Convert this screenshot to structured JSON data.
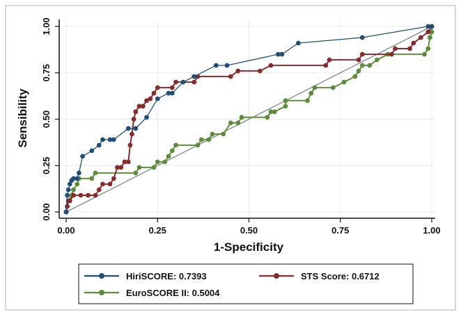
{
  "chart_data": {
    "type": "line",
    "title": "",
    "xlabel": "1-Specificity",
    "ylabel": "Sensibility",
    "xlim": [
      0,
      1
    ],
    "ylim": [
      0,
      1
    ],
    "x_ticks": [
      "0.00",
      "0.25",
      "0.50",
      "0.75",
      "1.00"
    ],
    "y_ticks": [
      "0.00",
      "0.25",
      "0.50",
      "0.75",
      "1.00"
    ],
    "grid": true,
    "legend_position": "bottom",
    "reference_line": true,
    "series": [
      {
        "name": "HiriSCORE: 0.7393",
        "color": "#1f4e79",
        "points": [
          [
            0,
            0
          ],
          [
            0.003,
            0.09
          ],
          [
            0.006,
            0.12
          ],
          [
            0.01,
            0.15
          ],
          [
            0.015,
            0.17
          ],
          [
            0.02,
            0.18
          ],
          [
            0.03,
            0.18
          ],
          [
            0.035,
            0.21
          ],
          [
            0.045,
            0.3
          ],
          [
            0.07,
            0.33
          ],
          [
            0.09,
            0.36
          ],
          [
            0.1,
            0.39
          ],
          [
            0.12,
            0.39
          ],
          [
            0.13,
            0.39
          ],
          [
            0.17,
            0.45
          ],
          [
            0.19,
            0.45
          ],
          [
            0.22,
            0.51
          ],
          [
            0.25,
            0.61
          ],
          [
            0.28,
            0.64
          ],
          [
            0.29,
            0.64
          ],
          [
            0.32,
            0.7
          ],
          [
            0.35,
            0.73
          ],
          [
            0.41,
            0.79
          ],
          [
            0.44,
            0.79
          ],
          [
            0.58,
            0.85
          ],
          [
            0.59,
            0.85
          ],
          [
            0.635,
            0.91
          ],
          [
            0.81,
            0.94
          ],
          [
            0.99,
            1.0
          ],
          [
            1.0,
            1.0
          ]
        ]
      },
      {
        "name": "STS Score: 0.6712",
        "color": "#8b2a2a",
        "points": [
          [
            0,
            0
          ],
          [
            0.003,
            0.03
          ],
          [
            0.006,
            0.06
          ],
          [
            0.01,
            0.06
          ],
          [
            0.02,
            0.09
          ],
          [
            0.04,
            0.09
          ],
          [
            0.06,
            0.09
          ],
          [
            0.08,
            0.09
          ],
          [
            0.09,
            0.12
          ],
          [
            0.1,
            0.15
          ],
          [
            0.12,
            0.15
          ],
          [
            0.13,
            0.18
          ],
          [
            0.14,
            0.24
          ],
          [
            0.15,
            0.24
          ],
          [
            0.16,
            0.27
          ],
          [
            0.17,
            0.27
          ],
          [
            0.175,
            0.36
          ],
          [
            0.18,
            0.42
          ],
          [
            0.185,
            0.5
          ],
          [
            0.19,
            0.54
          ],
          [
            0.2,
            0.57
          ],
          [
            0.21,
            0.57
          ],
          [
            0.22,
            0.6
          ],
          [
            0.23,
            0.61
          ],
          [
            0.24,
            0.64
          ],
          [
            0.25,
            0.67
          ],
          [
            0.29,
            0.67
          ],
          [
            0.3,
            0.7
          ],
          [
            0.35,
            0.7
          ],
          [
            0.36,
            0.73
          ],
          [
            0.45,
            0.73
          ],
          [
            0.47,
            0.76
          ],
          [
            0.53,
            0.76
          ],
          [
            0.56,
            0.79
          ],
          [
            0.71,
            0.79
          ],
          [
            0.72,
            0.82
          ],
          [
            0.8,
            0.82
          ],
          [
            0.81,
            0.85
          ],
          [
            0.89,
            0.85
          ],
          [
            0.9,
            0.88
          ],
          [
            0.94,
            0.88
          ],
          [
            0.95,
            0.91
          ],
          [
            0.97,
            0.94
          ],
          [
            0.99,
            0.97
          ],
          [
            1.0,
            1.0
          ]
        ]
      },
      {
        "name": "EuroSCORE II: 0.5004",
        "color": "#5e8c3a",
        "points": [
          [
            0,
            0
          ],
          [
            0.003,
            0.03
          ],
          [
            0.006,
            0.06
          ],
          [
            0.015,
            0.09
          ],
          [
            0.02,
            0.12
          ],
          [
            0.03,
            0.15
          ],
          [
            0.035,
            0.18
          ],
          [
            0.07,
            0.18
          ],
          [
            0.08,
            0.21
          ],
          [
            0.19,
            0.21
          ],
          [
            0.2,
            0.24
          ],
          [
            0.24,
            0.24
          ],
          [
            0.25,
            0.27
          ],
          [
            0.27,
            0.27
          ],
          [
            0.28,
            0.3
          ],
          [
            0.29,
            0.33
          ],
          [
            0.3,
            0.36
          ],
          [
            0.36,
            0.36
          ],
          [
            0.37,
            0.39
          ],
          [
            0.39,
            0.39
          ],
          [
            0.4,
            0.42
          ],
          [
            0.43,
            0.42
          ],
          [
            0.45,
            0.48
          ],
          [
            0.47,
            0.48
          ],
          [
            0.48,
            0.51
          ],
          [
            0.55,
            0.51
          ],
          [
            0.56,
            0.54
          ],
          [
            0.57,
            0.54
          ],
          [
            0.6,
            0.57
          ],
          [
            0.6,
            0.6
          ],
          [
            0.66,
            0.6
          ],
          [
            0.67,
            0.64
          ],
          [
            0.68,
            0.67
          ],
          [
            0.73,
            0.67
          ],
          [
            0.76,
            0.7
          ],
          [
            0.79,
            0.73
          ],
          [
            0.8,
            0.76
          ],
          [
            0.81,
            0.79
          ],
          [
            0.83,
            0.79
          ],
          [
            0.85,
            0.82
          ],
          [
            0.88,
            0.85
          ],
          [
            0.98,
            0.85
          ],
          [
            0.99,
            0.88
          ],
          [
            0.995,
            0.94
          ],
          [
            1.0,
            0.97
          ],
          [
            1.0,
            1.0
          ]
        ]
      }
    ]
  },
  "colors": {
    "reference_line": "#7a8a8a",
    "grid": "#e8ecec",
    "frame": "#b0b0b0"
  }
}
